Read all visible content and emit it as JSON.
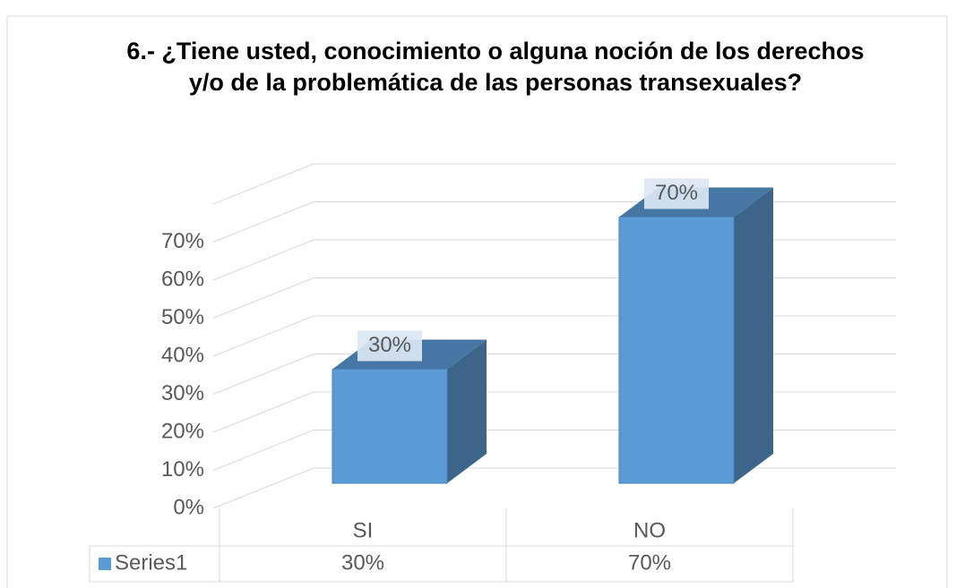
{
  "chart_data": {
    "type": "bar3d",
    "title": "6.- ¿Tiene usted, conocimiento o alguna noción de los derechos y/o de la problemática de las personas transexuales?",
    "categories": [
      "SI",
      "NO"
    ],
    "series": [
      {
        "name": "Series1",
        "color": "#5b9bd5",
        "values": [
          30,
          70
        ],
        "value_labels": [
          "30%",
          "70%"
        ]
      }
    ],
    "ylim": [
      0,
      80
    ],
    "yticks": [
      {
        "value": 0,
        "label": "0%"
      },
      {
        "value": 10,
        "label": "10%"
      },
      {
        "value": 20,
        "label": "20%"
      },
      {
        "value": 30,
        "label": "30%"
      },
      {
        "value": 40,
        "label": "40%"
      },
      {
        "value": 50,
        "label": "50%"
      },
      {
        "value": 60,
        "label": "60%"
      },
      {
        "value": 70,
        "label": "70%"
      }
    ],
    "grid": true,
    "data_table": true
  }
}
